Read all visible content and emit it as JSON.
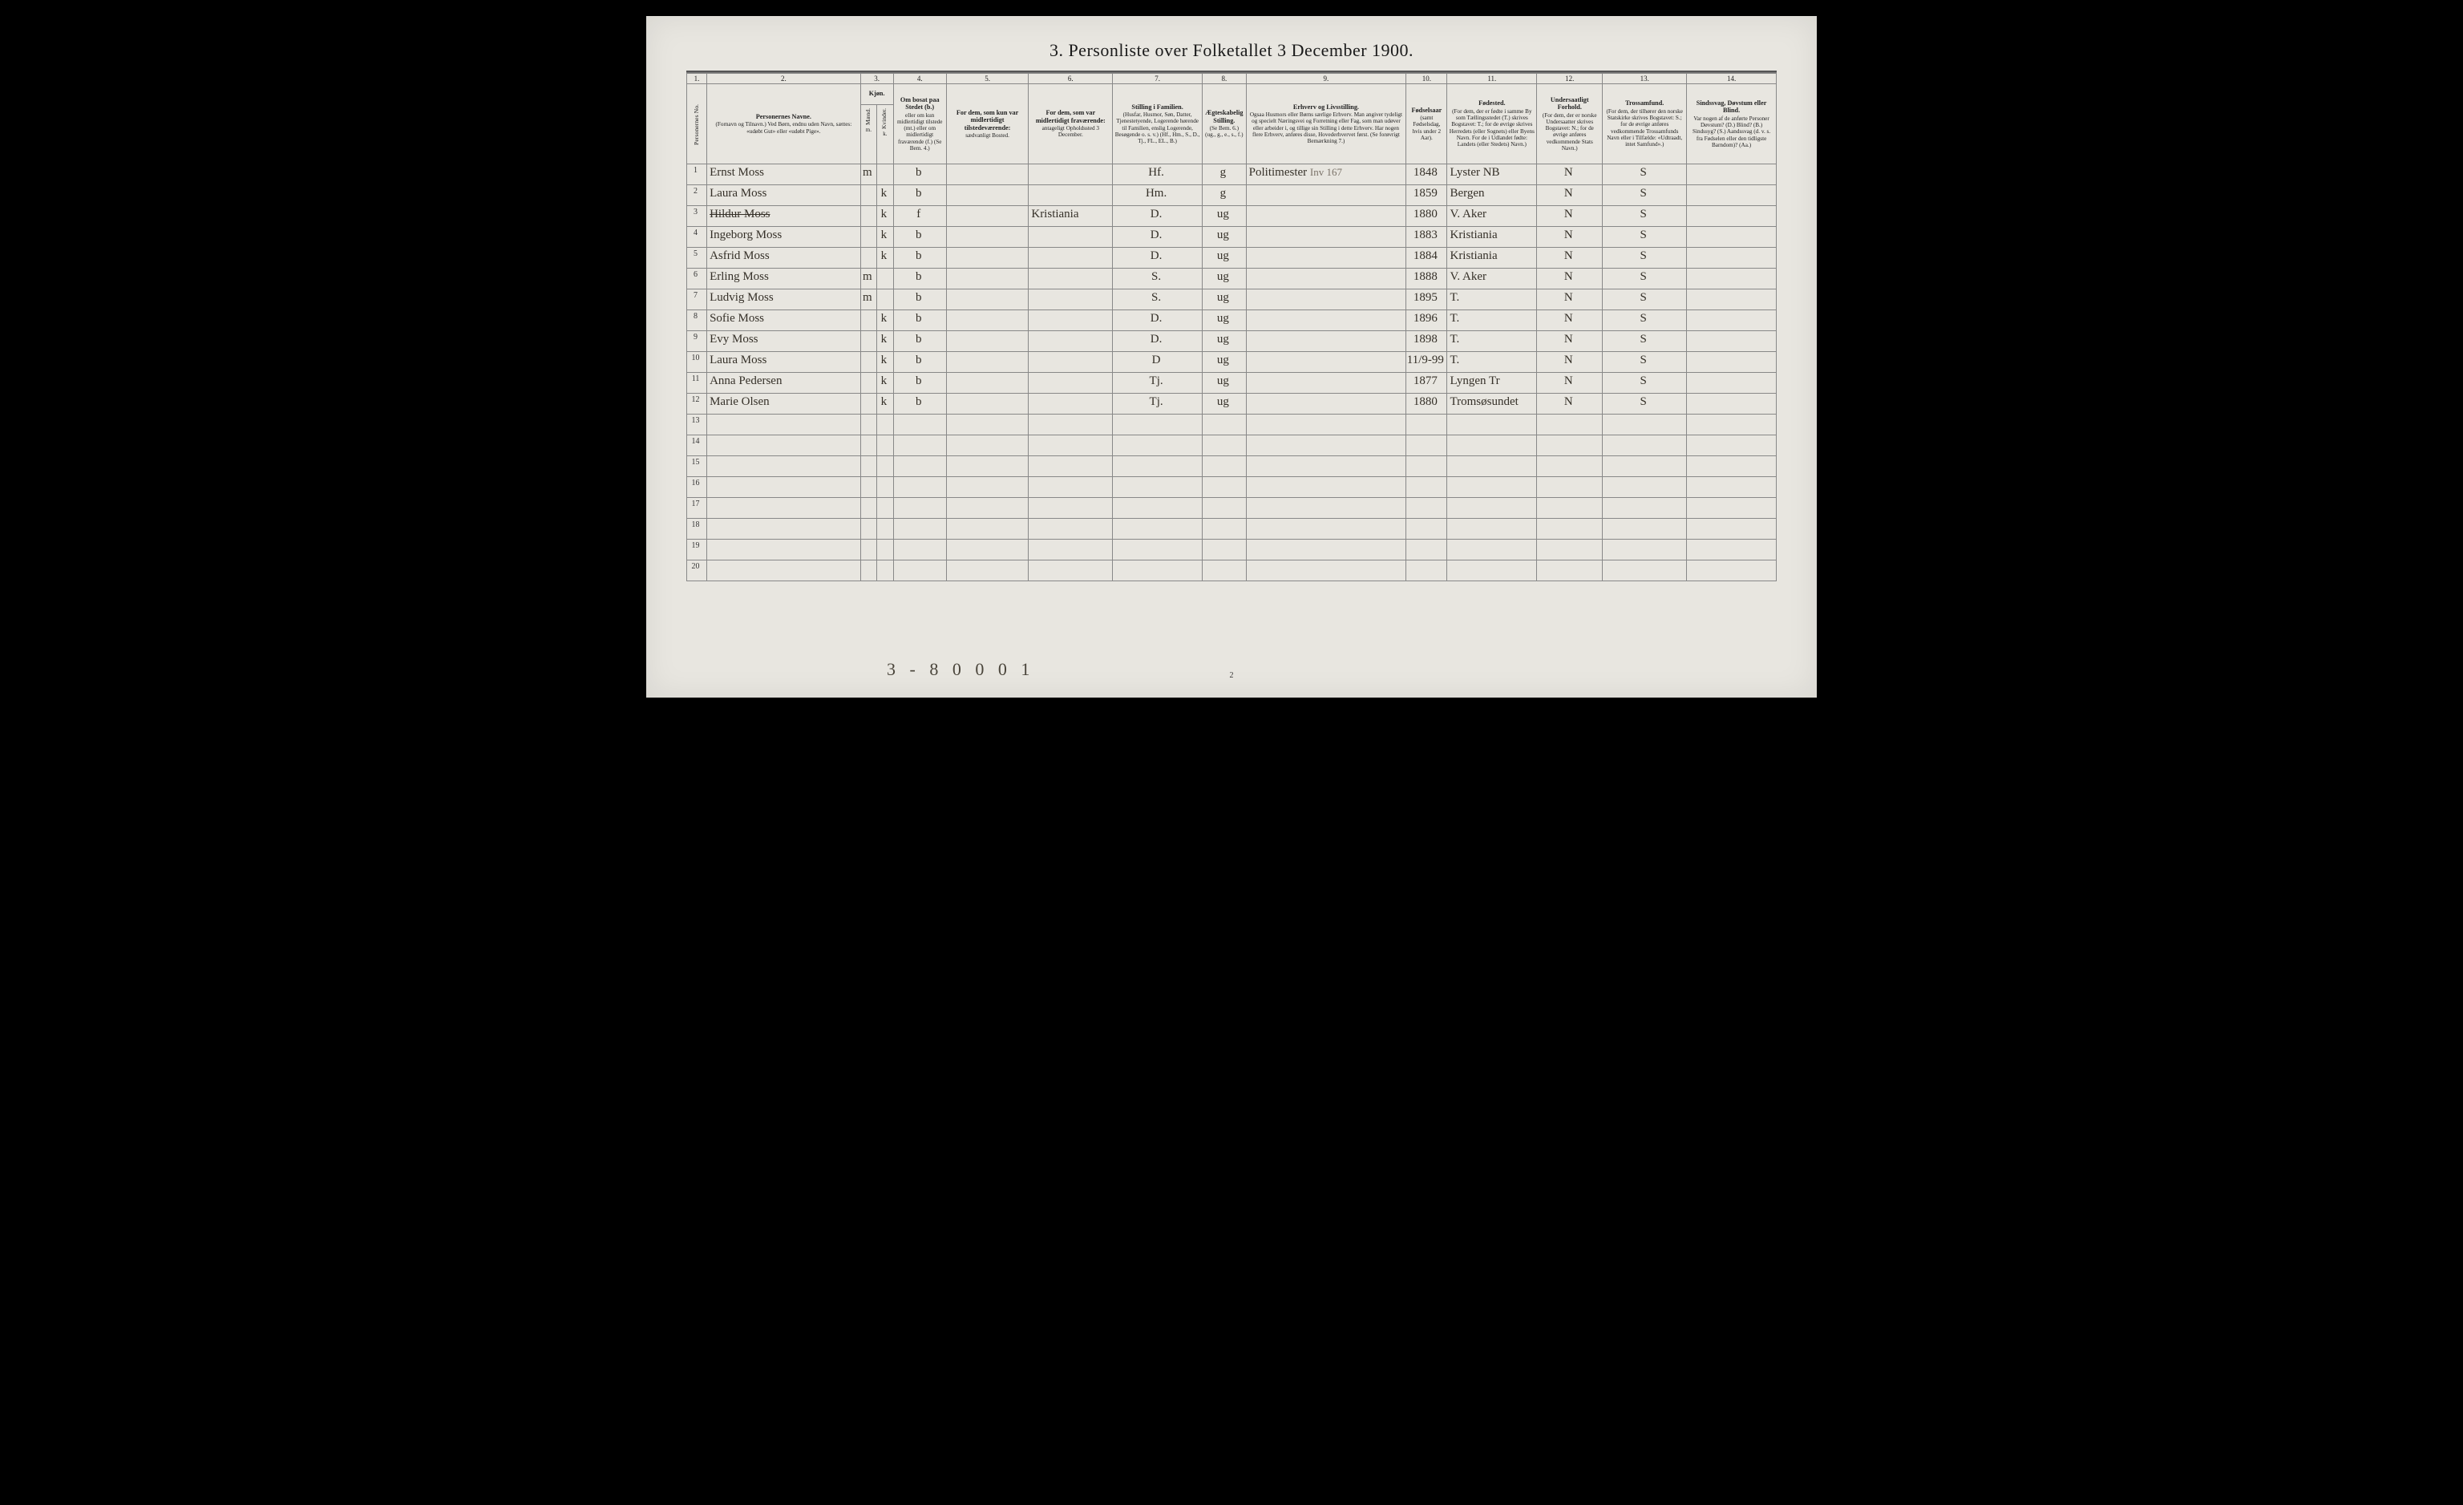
{
  "title": "3.  Personliste over Folketallet 3 December 1900.",
  "colnums": [
    "1.",
    "2.",
    "3.",
    "4.",
    "5.",
    "6.",
    "7.",
    "8.",
    "9.",
    "10.",
    "11.",
    "12.",
    "13.",
    "14."
  ],
  "headers": {
    "c1": {
      "label": "Personernes No."
    },
    "c2": {
      "label": "Personernes Navne.",
      "sub": "(Fornavn og Tilnavn.)\nVed Børn, endnu uden Navn, sættes: «udøbt Gut» eller «udøbt Pige»."
    },
    "c3": {
      "label": "Kjøn.",
      "sub": "Kvinder.",
      "m": "m.",
      "k": "k.",
      "mand": "Mænd."
    },
    "c4": {
      "label": "Om bosat paa Stedet (b.)",
      "sub": "eller om kun midlertidigt tilstede (mt.) eller om midlertidigt fraværende (f.)\n(Se Bem. 4.)"
    },
    "c5": {
      "label": "For dem, som kun var midlertidigt tilstedeværende:",
      "sub": "sædvanligt Bosted."
    },
    "c6": {
      "label": "For dem, som var midlertidigt fraværende:",
      "sub": "antageligt Opholdssted 3 December."
    },
    "c7": {
      "label": "Stilling i Familien.",
      "sub": "(Husfar, Husmor, Søn, Datter, Tjenestetyende, Logerende hørende til Familien, enslig Logerende, Besøgende o. s. v.)\n(Hf., Hm., S., D., Tj., FL., EL., B.)"
    },
    "c8": {
      "label": "Ægteskabelig Stilling.",
      "sub": "(Se Bem. 6.)\n(ug., g., e., s., f.)"
    },
    "c9": {
      "label": "Erhverv og Livsstilling.",
      "sub": "Ogsaa Husmors eller Børns særlige Erhverv. Man angiver tydeligt og specielt Næringsvei og Forretning eller Fag, som man udøver eller arbeider i, og tillige sin Stilling i dette Erhverv. Har nogen flere Erhverv, anføres disse, Hovederhvervet først.\n(Se forøvrigt Bemærkning 7.)"
    },
    "c10": {
      "label": "Fødselsaar",
      "sub": "(samt Fødselsdag, hvis under 2 Aar)."
    },
    "c11": {
      "label": "Fødested.",
      "sub": "(For dem, der er fødte i samme By som Tællingsstedet (T.) skrives Bogstavet: T.; for de øvrige skrives Herredets (eller Sognets) eller Byens Navn. For de i Udlandet fødte: Landets (eller Stedets) Navn.)"
    },
    "c12": {
      "label": "Undersaatligt Forhold.",
      "sub": "(For dem, der er norske Undersaatter skrives Bogstavet: N.; for de øvrige anføres vedkommende Stats Navn.)"
    },
    "c13": {
      "label": "Trossamfund.",
      "sub": "(For dem, der tilhører den norske Statskirke skrives Bogstavet: S.; for de øvrige anføres vedkommende Trossamfunds Navn eller i Tilfælde: «Udtraadt, intet Samfund».)"
    },
    "c14": {
      "label": "Sindssvag, Døvstum eller Blind.",
      "sub": "Var nogen af de anførte Personer Døvstum? (D.) Blind? (B.) Sindssyg? (S.) Aandssvag (d. v. s. fra Fødselen eller den tidligste Barndom)? (Aa.)"
    }
  },
  "rows": [
    {
      "n": "1",
      "name": "Ernst Moss",
      "sex": "m",
      "res": "b",
      "c7": "Hf.",
      "c8": "g",
      "c9": "Politimester",
      "c10": "1848",
      "c11": "Lyster   NB",
      "c12": "N",
      "c13": "S",
      "strike": false
    },
    {
      "n": "2",
      "name": "Laura Moss",
      "sex": "k",
      "res": "b",
      "c7": "Hm.",
      "c8": "g",
      "c9": "",
      "c10": "1859",
      "c11": "Bergen",
      "c12": "N",
      "c13": "S",
      "strike": false
    },
    {
      "n": "3",
      "name": "Hildur Moss",
      "sex": "k",
      "res": "f",
      "c6": "Kristiania",
      "c7": "D.",
      "c8": "ug",
      "c9": "",
      "c10": "1880",
      "c11": "V. Aker",
      "c12": "N",
      "c13": "S",
      "strike": true
    },
    {
      "n": "4",
      "name": "Ingeborg Moss",
      "sex": "k",
      "res": "b",
      "c7": "D.",
      "c8": "ug",
      "c9": "",
      "c10": "1883",
      "c11": "Kristiania",
      "c12": "N",
      "c13": "S",
      "strike": false
    },
    {
      "n": "5",
      "name": "Asfrid Moss",
      "sex": "k",
      "res": "b",
      "c7": "D.",
      "c8": "ug",
      "c9": "",
      "c10": "1884",
      "c11": "Kristiania",
      "c12": "N",
      "c13": "S",
      "strike": false
    },
    {
      "n": "6",
      "name": "Erling Moss",
      "sex": "m",
      "res": "b",
      "c7": "S.",
      "c8": "ug",
      "c9": "",
      "c10": "1888",
      "c11": "V. Aker",
      "c12": "N",
      "c13": "S",
      "strike": false
    },
    {
      "n": "7",
      "name": "Ludvig Moss",
      "sex": "m",
      "res": "b",
      "c7": "S.",
      "c8": "ug",
      "c9": "",
      "c10": "1895",
      "c11": "T.",
      "c12": "N",
      "c13": "S",
      "strike": false
    },
    {
      "n": "8",
      "name": "Sofie Moss",
      "sex": "k",
      "res": "b",
      "c7": "D.",
      "c8": "ug",
      "c9": "",
      "c10": "1896",
      "c11": "T.",
      "c12": "N",
      "c13": "S",
      "strike": false
    },
    {
      "n": "9",
      "name": "Evy Moss",
      "sex": "k",
      "res": "b",
      "c7": "D.",
      "c8": "ug",
      "c9": "",
      "c10": "1898",
      "c11": "T.",
      "c12": "N",
      "c13": "S",
      "strike": false
    },
    {
      "n": "10",
      "name": "Laura Moss",
      "sex": "k",
      "res": "b",
      "c7": "D",
      "c8": "ug",
      "c9": "",
      "c10": "11/9-99",
      "c11": "T.",
      "c12": "N",
      "c13": "S",
      "strike": false
    },
    {
      "n": "11",
      "name": "Anna Pedersen",
      "sex": "k",
      "res": "b",
      "c7": "Tj.",
      "c8": "ug",
      "c9": "",
      "c10": "1877",
      "c11": "Lyngen  Tr",
      "c12": "N",
      "c13": "S",
      "strike": false
    },
    {
      "n": "12",
      "name": "Marie Olsen",
      "sex": "k",
      "res": "b",
      "c7": "Tj.",
      "c8": "ug",
      "c9": "",
      "c10": "1880",
      "c11": "Tromsøsundet",
      "c12": "N",
      "c13": "S",
      "strike": false
    }
  ],
  "empty_rows": [
    "13",
    "14",
    "15",
    "16",
    "17",
    "18",
    "19",
    "20"
  ],
  "note_c9_line1": "Inv 167",
  "bottom_annotation": "3 - 8  0 0  0  1",
  "page_number": "2"
}
